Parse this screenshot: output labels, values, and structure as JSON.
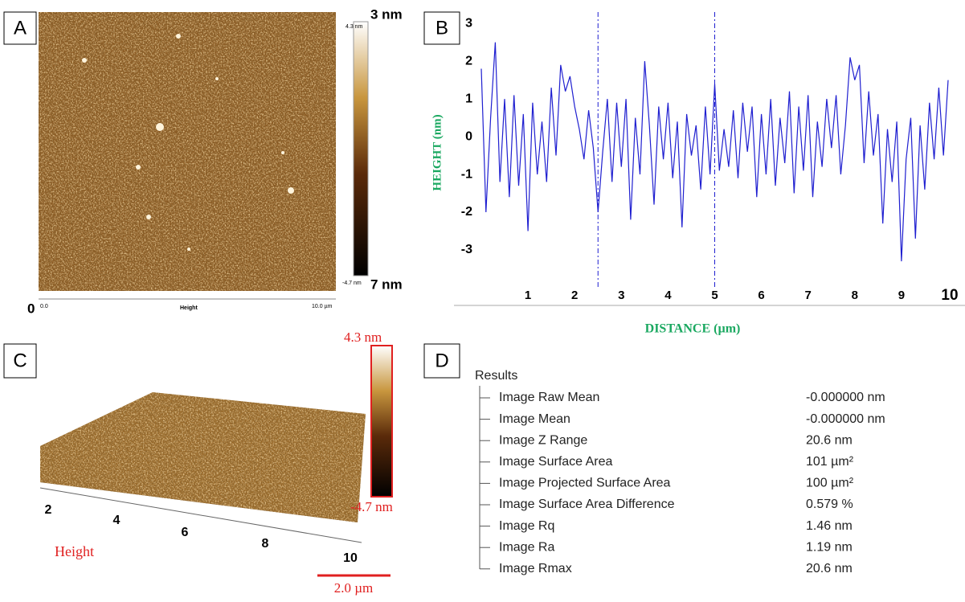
{
  "panel_a": {
    "letter": "A",
    "colorbar_max": "4.3 nm",
    "colorbar_max_overlay": "3 nm",
    "colorbar_min": "-4.7 nm",
    "colorbar_min_overlay": "7 nm",
    "origin_overlay": "0",
    "axis_start": "0.0",
    "axis_title": "Height",
    "axis_end": "10.0 µm"
  },
  "chart_data": {
    "type": "line",
    "panel": "B",
    "x_label": "DISTANCE (µm)",
    "y_label": "HEIGHT (nm)",
    "color": "#1f1fd0",
    "cursor_color": "#1f1fd0",
    "xlim": [
      0,
      10
    ],
    "ylim": [
      -4,
      3.3
    ],
    "xticks": [
      1,
      2,
      3,
      4,
      5,
      6,
      7,
      8,
      9,
      10
    ],
    "yticks": [
      -3,
      -2,
      -1,
      0,
      1,
      2,
      3
    ],
    "grid": false,
    "cursors": [
      2.5,
      5
    ],
    "x": [
      0,
      0.1,
      0.2,
      0.3,
      0.4,
      0.5,
      0.6,
      0.7,
      0.8,
      0.9,
      1,
      1.1,
      1.2,
      1.3,
      1.4,
      1.5,
      1.6,
      1.7,
      1.8,
      1.9,
      2,
      2.1,
      2.2,
      2.3,
      2.4,
      2.5,
      2.6,
      2.7,
      2.8,
      2.9,
      3,
      3.1,
      3.2,
      3.3,
      3.4,
      3.5,
      3.6,
      3.7,
      3.8,
      3.9,
      4,
      4.1,
      4.2,
      4.3,
      4.4,
      4.5,
      4.6,
      4.7,
      4.8,
      4.9,
      5,
      5.1,
      5.2,
      5.3,
      5.4,
      5.5,
      5.6,
      5.7,
      5.8,
      5.9,
      6,
      6.1,
      6.2,
      6.3,
      6.4,
      6.5,
      6.6,
      6.7,
      6.8,
      6.9,
      7,
      7.1,
      7.2,
      7.3,
      7.4,
      7.5,
      7.6,
      7.7,
      7.8,
      7.9,
      8,
      8.1,
      8.2,
      8.3,
      8.4,
      8.5,
      8.6,
      8.7,
      8.8,
      8.9,
      9,
      9.1,
      9.2,
      9.3,
      9.4,
      9.5,
      9.6,
      9.7,
      9.8,
      9.9,
      10
    ],
    "values": [
      1.8,
      -2.0,
      0.5,
      2.5,
      -1.2,
      1.0,
      -1.6,
      1.1,
      -1.3,
      0.6,
      -2.5,
      0.9,
      -1.0,
      0.4,
      -1.2,
      1.3,
      -0.5,
      1.9,
      1.2,
      1.6,
      0.8,
      0.2,
      -0.6,
      0.7,
      -0.3,
      -2.0,
      -0.4,
      1.0,
      -1.2,
      0.9,
      -0.8,
      1.0,
      -2.2,
      0.5,
      -1.0,
      2.0,
      0.3,
      -1.8,
      0.8,
      -0.6,
      0.9,
      -1.1,
      0.4,
      -2.4,
      0.6,
      -0.5,
      0.3,
      -1.4,
      0.8,
      -1.0,
      1.4,
      -0.9,
      0.2,
      -0.8,
      0.7,
      -1.1,
      0.9,
      -0.4,
      0.8,
      -1.6,
      0.6,
      -1.0,
      1.0,
      -1.3,
      0.5,
      -0.7,
      1.2,
      -1.5,
      0.8,
      -0.9,
      1.1,
      -1.6,
      0.4,
      -0.8,
      1.0,
      -0.3,
      1.1,
      -1.0,
      0.3,
      2.1,
      1.5,
      1.9,
      -0.7,
      1.2,
      -0.5,
      0.6,
      -2.3,
      0.2,
      -1.2,
      0.4,
      -3.3,
      -0.6,
      0.5,
      -2.7,
      0.3,
      -1.4,
      0.9,
      -0.6,
      1.3,
      -0.5,
      1.5
    ]
  },
  "panel_c": {
    "letter": "C",
    "colorbar_max": "4.3 nm",
    "colorbar_min": "-4.7 nm",
    "axis_ticks": [
      "2",
      "4",
      "6",
      "8",
      "10"
    ],
    "axis_title": "Height",
    "scale_bar": "2.0 µm"
  },
  "panel_d": {
    "letter": "D",
    "title": "Results",
    "rows": [
      [
        "Image Raw Mean",
        "-0.000000 nm"
      ],
      [
        "Image Mean",
        "-0.000000 nm"
      ],
      [
        "Image Z Range",
        "20.6 nm"
      ],
      [
        "Image Surface Area",
        "101 µm²"
      ],
      [
        "Image Projected Surface Area",
        "100 µm²"
      ],
      [
        "Image Surface Area Difference",
        "0.579 %"
      ],
      [
        "Image Rq",
        "1.46 nm"
      ],
      [
        "Image Ra",
        "1.19 nm"
      ],
      [
        "Image Rmax",
        "20.6 nm"
      ]
    ]
  }
}
